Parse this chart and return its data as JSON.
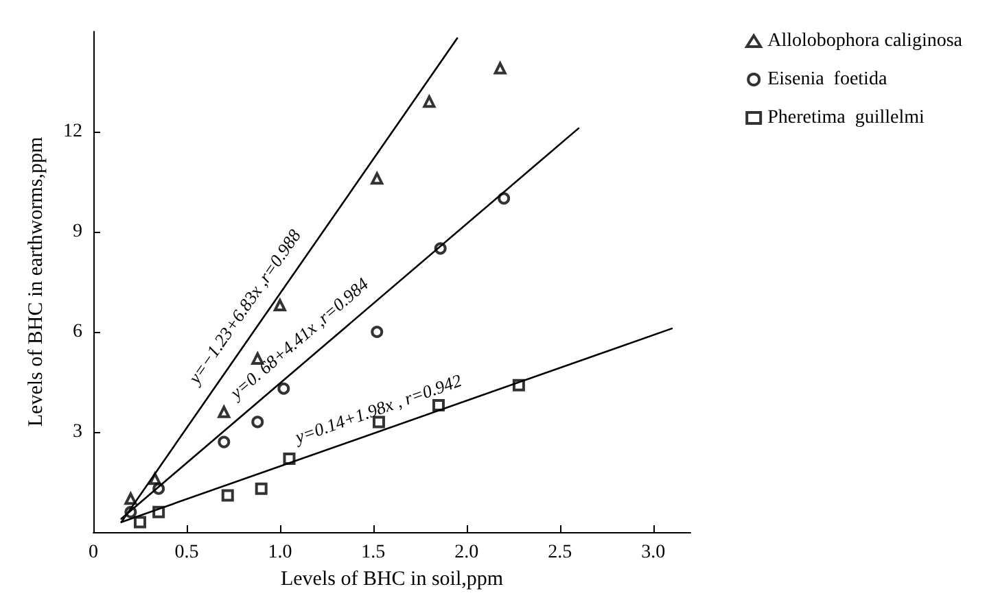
{
  "chart_data": {
    "type": "scatter",
    "xlabel": "Levels of BHC in soil,ppm",
    "ylabel": "Levels of BHC in earthworms,ppm",
    "xlim": [
      0,
      3.2
    ],
    "xticks": [
      0,
      0.5,
      {
        "value": 1,
        "label": "1.0"
      },
      1.5,
      {
        "value": 2,
        "label": "2.0"
      },
      2.5,
      {
        "value": 3,
        "label": "3.0"
      }
    ],
    "ylim": [
      0,
      15
    ],
    "yticks": [
      3,
      6,
      9,
      12
    ],
    "grid": false,
    "legend": "top right",
    "series": [
      {
        "name": "Allolobophora caliginosa",
        "color": "#000000",
        "marker": "triangle",
        "x": [
          0.2,
          0.33,
          0.7,
          0.88,
          1.0,
          1.52,
          1.8,
          2.18
        ],
        "values": [
          1.0,
          1.6,
          3.6,
          5.2,
          6.8,
          10.6,
          12.9,
          13.9
        ]
      },
      {
        "name": "Eisenia  foetida",
        "color": "#000000",
        "marker": "circle",
        "x": [
          0.2,
          0.35,
          0.7,
          0.88,
          1.02,
          1.52,
          1.86,
          2.2
        ],
        "values": [
          0.6,
          1.3,
          2.7,
          3.3,
          4.3,
          6.0,
          8.5,
          10.0
        ]
      },
      {
        "name": "Pheretima  guillelmi",
        "color": "#000000",
        "marker": "square",
        "x": [
          0.25,
          0.35,
          0.72,
          0.9,
          1.05,
          1.53,
          1.85,
          2.28
        ],
        "values": [
          0.3,
          0.6,
          1.1,
          1.3,
          2.2,
          3.3,
          3.8,
          4.4
        ]
      },
      {
        "type": "line",
        "color": "#000000",
        "x": [
          0.15,
          1.95
        ],
        "values": [
          0.3,
          14.8
        ]
      },
      {
        "type": "line",
        "color": "#000000",
        "x": [
          0.15,
          2.6
        ],
        "values": [
          0.4,
          12.1
        ]
      },
      {
        "type": "line",
        "color": "#000000",
        "x": [
          0.15,
          3.1
        ],
        "values": [
          0.3,
          6.1
        ]
      }
    ],
    "annotations": [
      "y=−1.23+6.83x ,r=0.988",
      "y=0. 68+4.41x ,r=0.984",
      "y=0.14+1.98x , r=0.942"
    ]
  }
}
